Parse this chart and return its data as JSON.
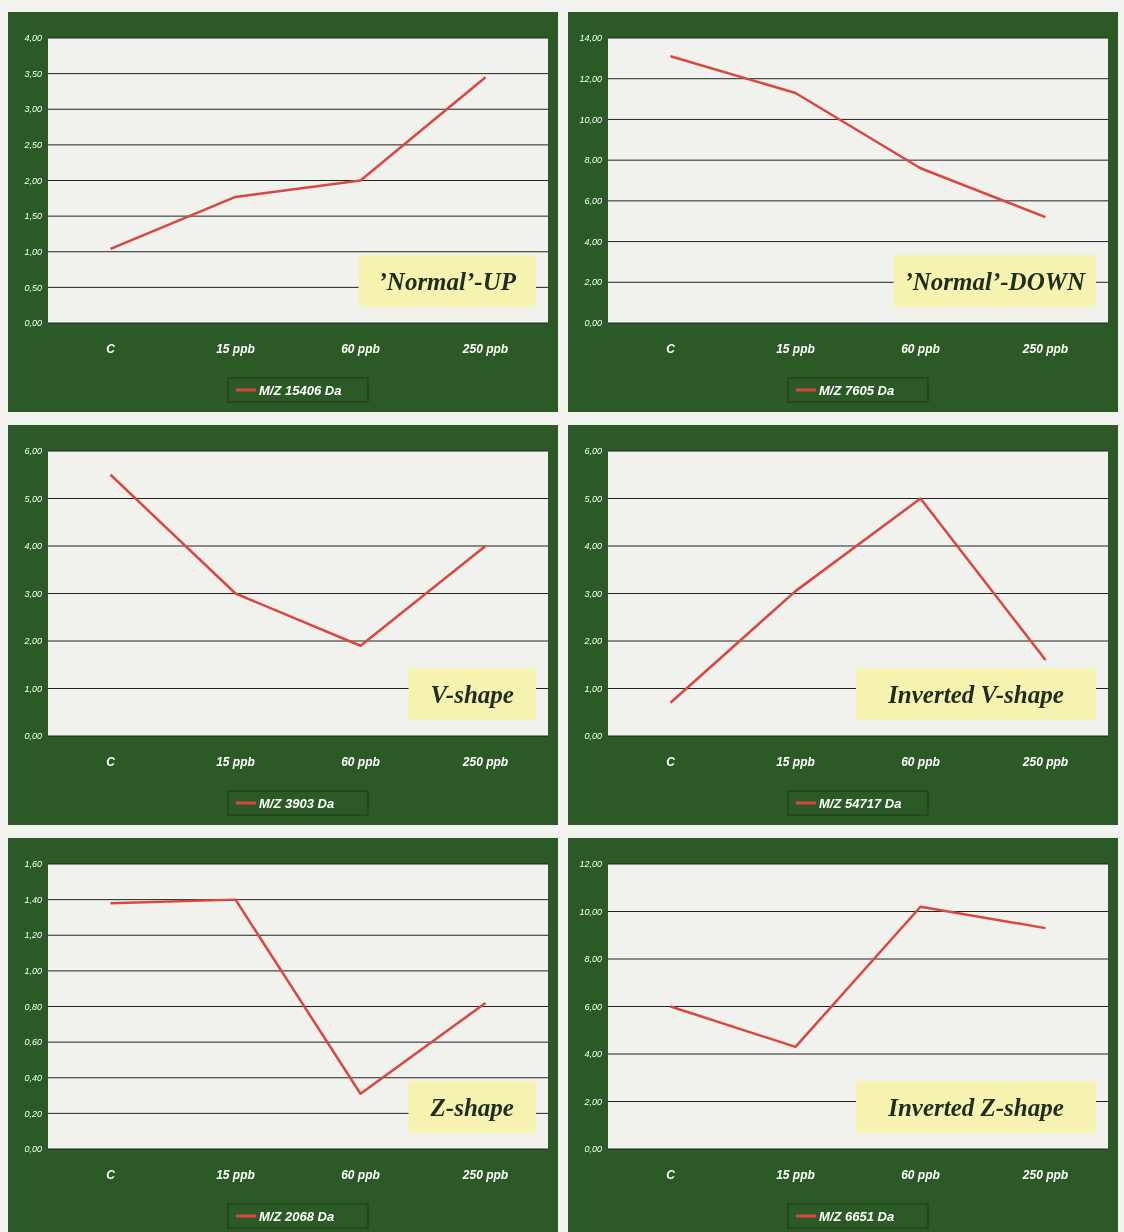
{
  "chart_data": [
    {
      "type": "line",
      "categories": [
        "C",
        "15 ppb",
        "60 ppb",
        "250 ppb"
      ],
      "series": [
        {
          "name": "M/Z 15406 Da",
          "color": "#d9473f",
          "values": [
            1.04,
            1.77,
            2.0,
            3.45
          ]
        }
      ],
      "ylim": [
        0,
        4
      ],
      "yticks": [
        {
          "value": 0,
          "label": "0,00"
        },
        {
          "value": 0.5,
          "label": "0,50"
        },
        {
          "value": 1,
          "label": "1,00"
        },
        {
          "value": 1.5,
          "label": "1,50"
        },
        {
          "value": 2,
          "label": "2,00"
        },
        {
          "value": 2.5,
          "label": "2,50"
        },
        {
          "value": 3,
          "label": "3,00"
        },
        {
          "value": 3.5,
          "label": "3,50"
        },
        {
          "value": 4,
          "label": "4,00"
        }
      ],
      "grid": "y",
      "legend": "bottom",
      "annotations": [
        "’Normal’-UP"
      ]
    },
    {
      "type": "line",
      "categories": [
        "C",
        "15 ppb",
        "60 ppb",
        "250 ppb"
      ],
      "series": [
        {
          "name": "M/Z 7605 Da",
          "color": "#d9473f",
          "values": [
            13.1,
            11.3,
            7.6,
            5.2
          ]
        }
      ],
      "ylim": [
        0,
        14
      ],
      "yticks": [
        {
          "value": 0,
          "label": "0,00"
        },
        {
          "value": 2,
          "label": "2,00"
        },
        {
          "value": 4,
          "label": "4,00"
        },
        {
          "value": 6,
          "label": "6,00"
        },
        {
          "value": 8,
          "label": "8,00"
        },
        {
          "value": 10,
          "label": "10,00"
        },
        {
          "value": 12,
          "label": "12,00"
        },
        {
          "value": 14,
          "label": "14,00"
        }
      ],
      "grid": "y",
      "legend": "bottom",
      "annotations": [
        "’Normal’-DOWN"
      ]
    },
    {
      "type": "line",
      "categories": [
        "C",
        "15 ppb",
        "60 ppb",
        "250 ppb"
      ],
      "series": [
        {
          "name": "M/Z 3903 Da",
          "color": "#d9473f",
          "values": [
            5.5,
            3.0,
            1.9,
            4.0
          ]
        }
      ],
      "ylim": [
        0,
        6
      ],
      "yticks": [
        {
          "value": 0,
          "label": "0,00"
        },
        {
          "value": 1,
          "label": "1,00"
        },
        {
          "value": 2,
          "label": "2,00"
        },
        {
          "value": 3,
          "label": "3,00"
        },
        {
          "value": 4,
          "label": "4,00"
        },
        {
          "value": 5,
          "label": "5,00"
        },
        {
          "value": 6,
          "label": "6,00"
        }
      ],
      "grid": "y",
      "legend": "bottom",
      "annotations": [
        "V-shape"
      ]
    },
    {
      "type": "line",
      "categories": [
        "C",
        "15 ppb",
        "60 ppb",
        "250 ppb"
      ],
      "series": [
        {
          "name": "M/Z 54717 Da",
          "color": "#d9473f",
          "values": [
            0.7,
            3.05,
            5.0,
            1.6
          ]
        }
      ],
      "ylim": [
        0,
        6
      ],
      "yticks": [
        {
          "value": 0,
          "label": "0,00"
        },
        {
          "value": 1,
          "label": "1,00"
        },
        {
          "value": 2,
          "label": "2,00"
        },
        {
          "value": 3,
          "label": "3,00"
        },
        {
          "value": 4,
          "label": "4,00"
        },
        {
          "value": 5,
          "label": "5,00"
        },
        {
          "value": 6,
          "label": "6,00"
        }
      ],
      "grid": "y",
      "legend": "bottom",
      "annotations": [
        "Inverted V-shape"
      ]
    },
    {
      "type": "line",
      "categories": [
        "C",
        "15 ppb",
        "60 ppb",
        "250 ppb"
      ],
      "series": [
        {
          "name": "M/Z 2068 Da",
          "color": "#d9473f",
          "values": [
            1.38,
            1.4,
            0.31,
            0.82
          ]
        }
      ],
      "ylim": [
        0,
        1.6
      ],
      "yticks": [
        {
          "value": 0,
          "label": "0,00"
        },
        {
          "value": 0.2,
          "label": "0,20"
        },
        {
          "value": 0.4,
          "label": "0,40"
        },
        {
          "value": 0.6,
          "label": "0,60"
        },
        {
          "value": 0.8,
          "label": "0,80"
        },
        {
          "value": 1,
          "label": "1,00"
        },
        {
          "value": 1.2,
          "label": "1,20"
        },
        {
          "value": 1.4,
          "label": "1,40"
        },
        {
          "value": 1.6,
          "label": "1,60"
        }
      ],
      "grid": "y",
      "legend": "bottom",
      "annotations": [
        "Z-shape"
      ]
    },
    {
      "type": "line",
      "categories": [
        "C",
        "15 ppb",
        "60 ppb",
        "250 ppb"
      ],
      "series": [
        {
          "name": "M/Z 6651 Da",
          "color": "#d9473f",
          "values": [
            6.0,
            4.3,
            10.2,
            9.3
          ]
        }
      ],
      "ylim": [
        0,
        12
      ],
      "yticks": [
        {
          "value": 0,
          "label": "0,00"
        },
        {
          "value": 2,
          "label": "2,00"
        },
        {
          "value": 4,
          "label": "4,00"
        },
        {
          "value": 6,
          "label": "6,00"
        },
        {
          "value": 8,
          "label": "8,00"
        },
        {
          "value": 10,
          "label": "10,00"
        },
        {
          "value": 12,
          "label": "12,00"
        }
      ],
      "grid": "y",
      "legend": "bottom",
      "annotations": [
        "Inverted Z-shape"
      ]
    }
  ]
}
